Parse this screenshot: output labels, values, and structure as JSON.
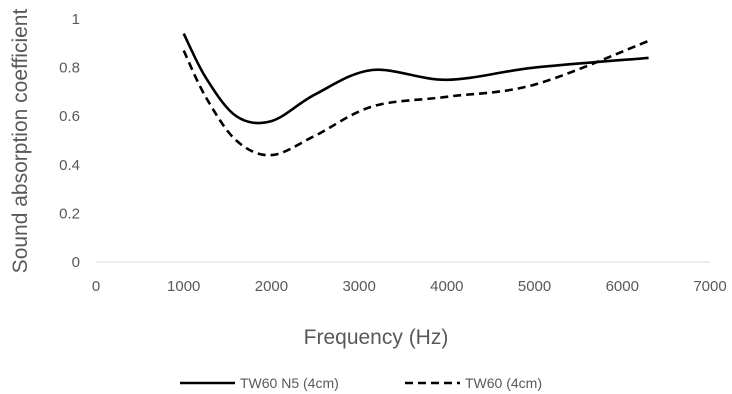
{
  "chart_data": {
    "type": "line",
    "title": "",
    "xlabel": "Frequency (Hz)",
    "ylabel": "Sound absorption coefficient",
    "xlim": [
      0,
      7000
    ],
    "ylim": [
      0,
      1
    ],
    "xticks": [
      "0",
      "1000",
      "2000",
      "3000",
      "4000",
      "5000",
      "6000",
      "7000"
    ],
    "yticks": [
      "0",
      "0.2",
      "0.4",
      "0.6",
      "0.8",
      "1"
    ],
    "grid": false,
    "legend_position": "bottom",
    "series": [
      {
        "name": "TW60 N5 (4cm)",
        "style": "solid",
        "color": "#000000",
        "x": [
          1000,
          1250,
          1600,
          2000,
          2500,
          3150,
          4000,
          5000,
          6300
        ],
        "y": [
          0.94,
          0.76,
          0.6,
          0.58,
          0.69,
          0.79,
          0.75,
          0.8,
          0.84
        ]
      },
      {
        "name": "TW60 (4cm)",
        "style": "dashed",
        "color": "#000000",
        "x": [
          1000,
          1250,
          1600,
          2000,
          2500,
          3150,
          4000,
          5000,
          6300
        ],
        "y": [
          0.87,
          0.68,
          0.5,
          0.44,
          0.52,
          0.64,
          0.68,
          0.73,
          0.91
        ]
      }
    ]
  }
}
